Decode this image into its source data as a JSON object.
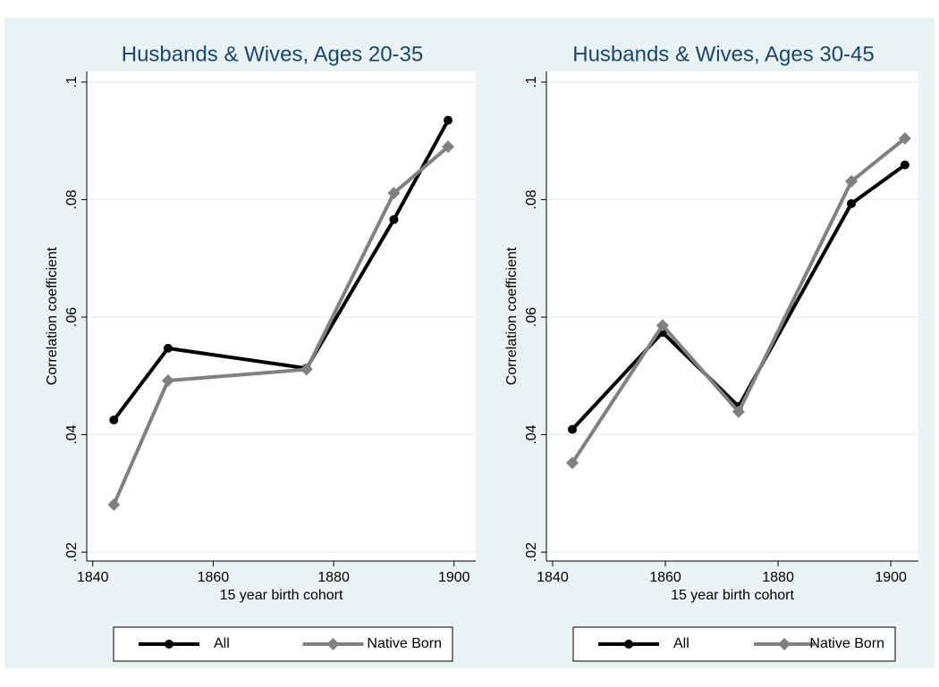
{
  "chart_data": [
    {
      "type": "line",
      "title": "Husbands & Wives, Ages 20-35",
      "x_label": "15 year birth cohort",
      "y_label": "Correlation coefficient",
      "x": [
        1843.5,
        1852.5,
        1875.5,
        1890,
        1899
      ],
      "series": [
        {
          "name": "All",
          "color": "#000000",
          "marker": "circle",
          "values": [
            0.0425,
            0.0547,
            0.0513,
            0.0766,
            0.0935
          ]
        },
        {
          "name": "Native Born",
          "color": "#808080",
          "marker": "diamond",
          "values": [
            0.0281,
            0.0492,
            0.0511,
            0.0811,
            0.089
          ]
        }
      ],
      "xlim": [
        1839,
        1903.6
      ],
      "xticks": [
        1840,
        1860,
        1880,
        1900
      ],
      "ylim": [
        0.0185,
        0.1018
      ],
      "yticks": [
        {
          "value": 0.02,
          "label": ".02"
        },
        {
          "value": 0.04,
          "label": ".04"
        },
        {
          "value": 0.06,
          "label": ".06"
        },
        {
          "value": 0.08,
          "label": ".08"
        },
        {
          "value": 0.1,
          "label": ".1"
        }
      ],
      "grid": true
    },
    {
      "type": "line",
      "title": "Husbands & Wives, Ages 30-45",
      "x_label": "15 year birth cohort",
      "y_label": "Correlation coefficient",
      "x": [
        1843.5,
        1859.5,
        1873,
        1893,
        1902.5
      ],
      "series": [
        {
          "name": "All",
          "color": "#000000",
          "marker": "circle",
          "values": [
            0.0409,
            0.0574,
            0.0448,
            0.0793,
            0.0859
          ]
        },
        {
          "name": "Native Born",
          "color": "#808080",
          "marker": "diamond",
          "values": [
            0.0352,
            0.0586,
            0.0439,
            0.0831,
            0.0904
          ]
        }
      ],
      "xlim": [
        1838.9,
        1904.9
      ],
      "xticks": [
        1840,
        1860,
        1880,
        1900
      ],
      "ylim": [
        0.0185,
        0.1018
      ],
      "yticks": [
        {
          "value": 0.02,
          "label": ".02"
        },
        {
          "value": 0.04,
          "label": ".04"
        },
        {
          "value": 0.06,
          "label": ".06"
        },
        {
          "value": 0.08,
          "label": ".08"
        },
        {
          "value": 0.1,
          "label": ".1"
        }
      ],
      "grid": true
    }
  ]
}
